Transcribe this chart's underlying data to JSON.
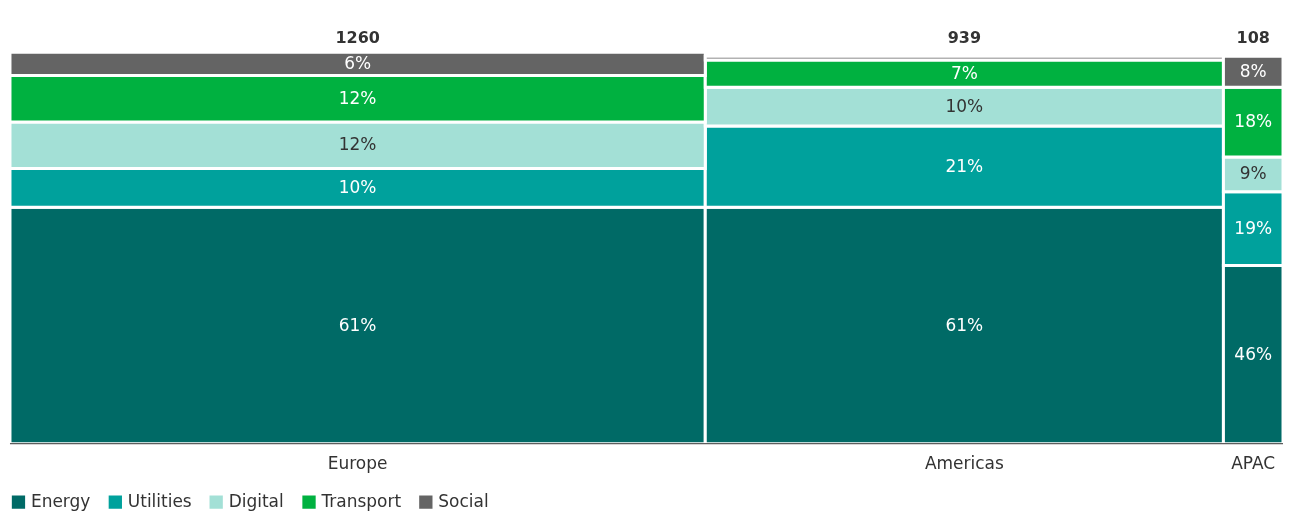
{
  "chart_data": {
    "type": "bar",
    "stacked": true,
    "legend": "bottom left",
    "categories": [
      "Europe",
      "Americas",
      "APAC"
    ],
    "annotations": [
      "1260",
      "939",
      "108"
    ],
    "series": [
      {
        "name": "Energy",
        "color": "#006a66",
        "values": [
          61,
          61,
          46
        ],
        "value_labels": [
          "61%",
          "61%",
          "46%"
        ]
      },
      {
        "name": "Utilities",
        "color": "#00a19c",
        "values": [
          10,
          21,
          19
        ],
        "value_labels": [
          "10%",
          "21%",
          "19%"
        ]
      },
      {
        "name": "Digital",
        "color": "#a3e0d6",
        "values": [
          12,
          10,
          9
        ],
        "value_labels": [
          "12%",
          "10%",
          "9%"
        ]
      },
      {
        "name": "Transport",
        "color": "#00b140",
        "values": [
          12,
          7,
          18
        ],
        "value_labels": [
          "12%",
          "7%",
          "18%"
        ]
      },
      {
        "name": "Social",
        "color": "#646464",
        "values": [
          6,
          1,
          8
        ],
        "value_labels": [
          "6%",
          null,
          "8%"
        ]
      }
    ]
  }
}
